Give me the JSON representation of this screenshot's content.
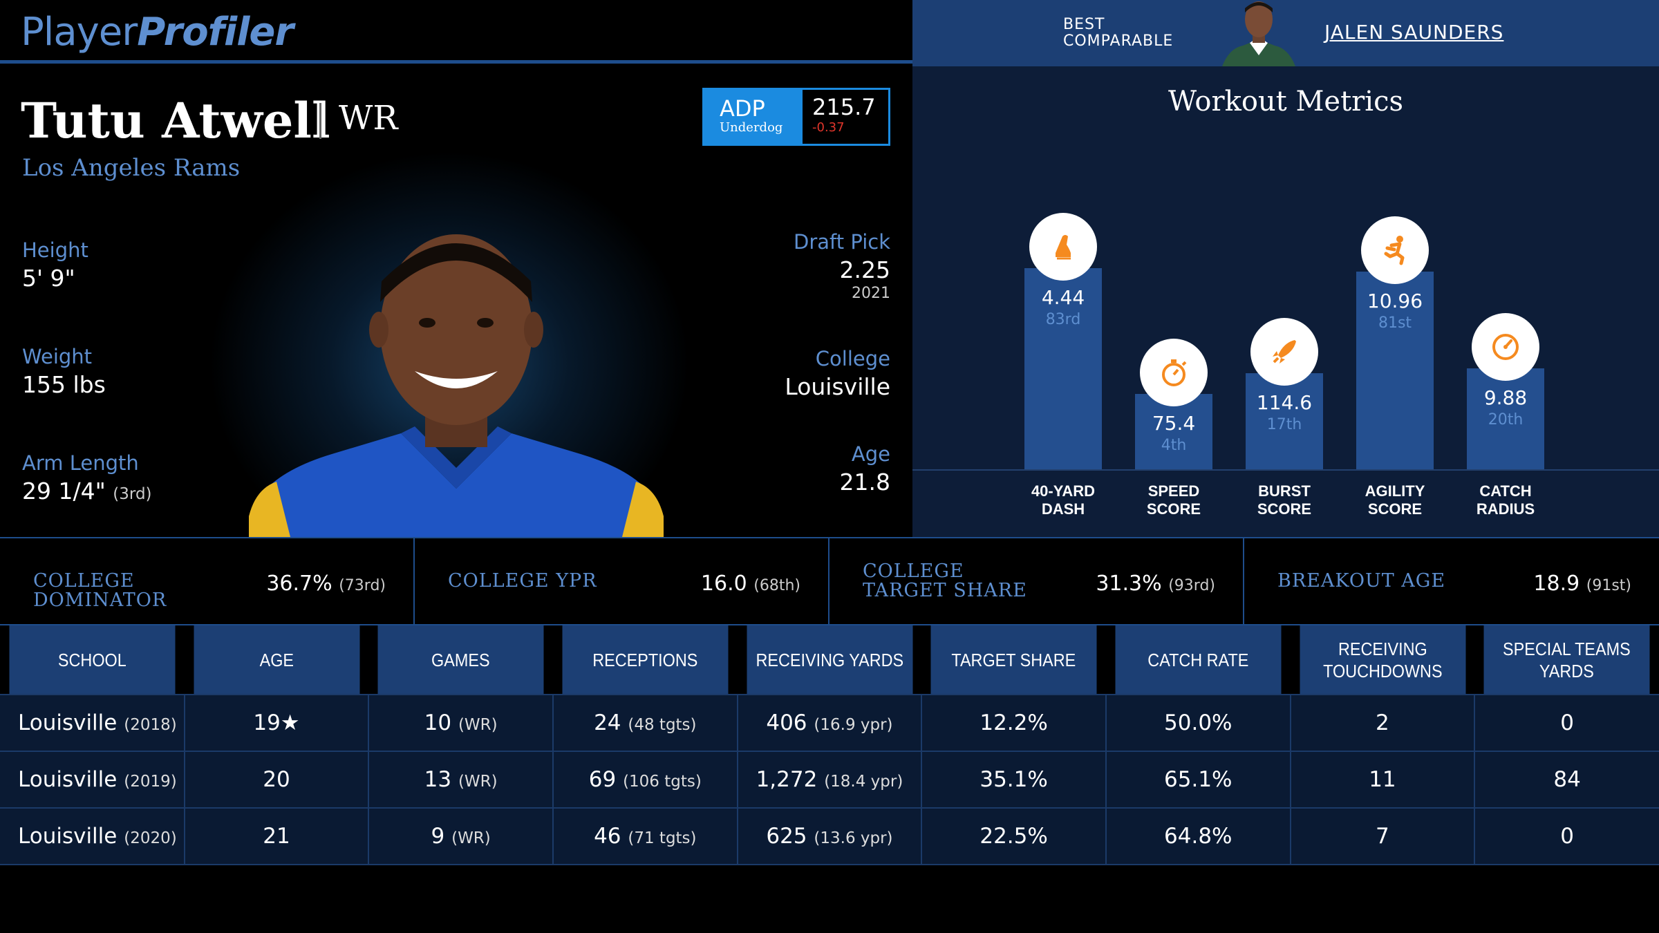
{
  "logo": {
    "part1": "Player",
    "part2": "Profiler"
  },
  "comparable": {
    "label_line1": "BEST",
    "label_line2": "COMPARABLE",
    "name": "JALEN SAUNDERS"
  },
  "player": {
    "name": "Tutu Atwell",
    "position": "WR",
    "team": "Los Angeles Rams",
    "height": {
      "label": "Height",
      "value": "5' 9\""
    },
    "weight": {
      "label": "Weight",
      "value": "155 lbs"
    },
    "arm_length": {
      "label": "Arm Length",
      "value": "29 1/4\"",
      "rank": "(3rd)"
    },
    "draft_pick": {
      "label": "Draft Pick",
      "value": "2.25",
      "year": "2021"
    },
    "college": {
      "label": "College",
      "value": "Louisville"
    },
    "age": {
      "label": "Age",
      "value": "21.8"
    }
  },
  "adp": {
    "label": "ADP",
    "source": "Underdog",
    "value": "215.7",
    "change": "-0.37"
  },
  "workout": {
    "title": "Workout Metrics",
    "metrics": [
      {
        "label_line1": "40-YARD",
        "label_line2": "DASH",
        "value": "4.44",
        "rank": "83rd",
        "percentile": 83,
        "icon": "shoe-icon"
      },
      {
        "label_line1": "SPEED",
        "label_line2": "SCORE",
        "value": "75.4",
        "rank": "4th",
        "percentile": 4,
        "icon": "stopwatch-icon"
      },
      {
        "label_line1": "BURST",
        "label_line2": "SCORE",
        "value": "114.6",
        "rank": "17th",
        "percentile": 17,
        "icon": "rocket-icon"
      },
      {
        "label_line1": "AGILITY",
        "label_line2": "SCORE",
        "value": "10.96",
        "rank": "81st",
        "percentile": 81,
        "icon": "runner-icon"
      },
      {
        "label_line1": "CATCH",
        "label_line2": "RADIUS",
        "value": "9.88",
        "rank": "20th",
        "percentile": 20,
        "icon": "gauge-icon"
      }
    ],
    "colors": {
      "icon": "#f58a1f",
      "bar": "#244f8f"
    }
  },
  "college_stats": [
    {
      "label": "COLLEGE DOMINATOR",
      "value": "36.7%",
      "rank": "(73rd)"
    },
    {
      "label": "COLLEGE YPR",
      "value": "16.0",
      "rank": "(68th)"
    },
    {
      "label": "COLLEGE TARGET SHARE",
      "value": "31.3%",
      "rank": "(93rd)"
    },
    {
      "label": "BREAKOUT AGE",
      "value": "18.9",
      "rank": "(91st)"
    }
  ],
  "table": {
    "headers": [
      "SCHOOL",
      "AGE",
      "GAMES",
      "RECEPTIONS",
      "RECEIVING YARDS",
      "TARGET SHARE",
      "CATCH RATE",
      "RECEIVING TOUCHDOWNS",
      "SPECIAL TEAMS YARDS"
    ],
    "rows": [
      {
        "school": "Louisville",
        "year": "(2018)",
        "age": "19★",
        "games": "10",
        "games_pos": "(WR)",
        "receptions": "24",
        "targets": "(48 tgts)",
        "yards": "406",
        "ypr": "(16.9 ypr)",
        "target_share": "12.2%",
        "catch_rate": "50.0%",
        "tds": "2",
        "st_yards": "0"
      },
      {
        "school": "Louisville",
        "year": "(2019)",
        "age": "20",
        "games": "13",
        "games_pos": "(WR)",
        "receptions": "69",
        "targets": "(106 tgts)",
        "yards": "1,272",
        "ypr": "(18.4 ypr)",
        "target_share": "35.1%",
        "catch_rate": "65.1%",
        "tds": "11",
        "st_yards": "84"
      },
      {
        "school": "Louisville",
        "year": "(2020)",
        "age": "21",
        "games": "9",
        "games_pos": "(WR)",
        "receptions": "46",
        "targets": "(71 tgts)",
        "yards": "625",
        "ypr": "(13.6 ypr)",
        "target_share": "22.5%",
        "catch_rate": "64.8%",
        "tds": "7",
        "st_yards": "0"
      }
    ]
  }
}
